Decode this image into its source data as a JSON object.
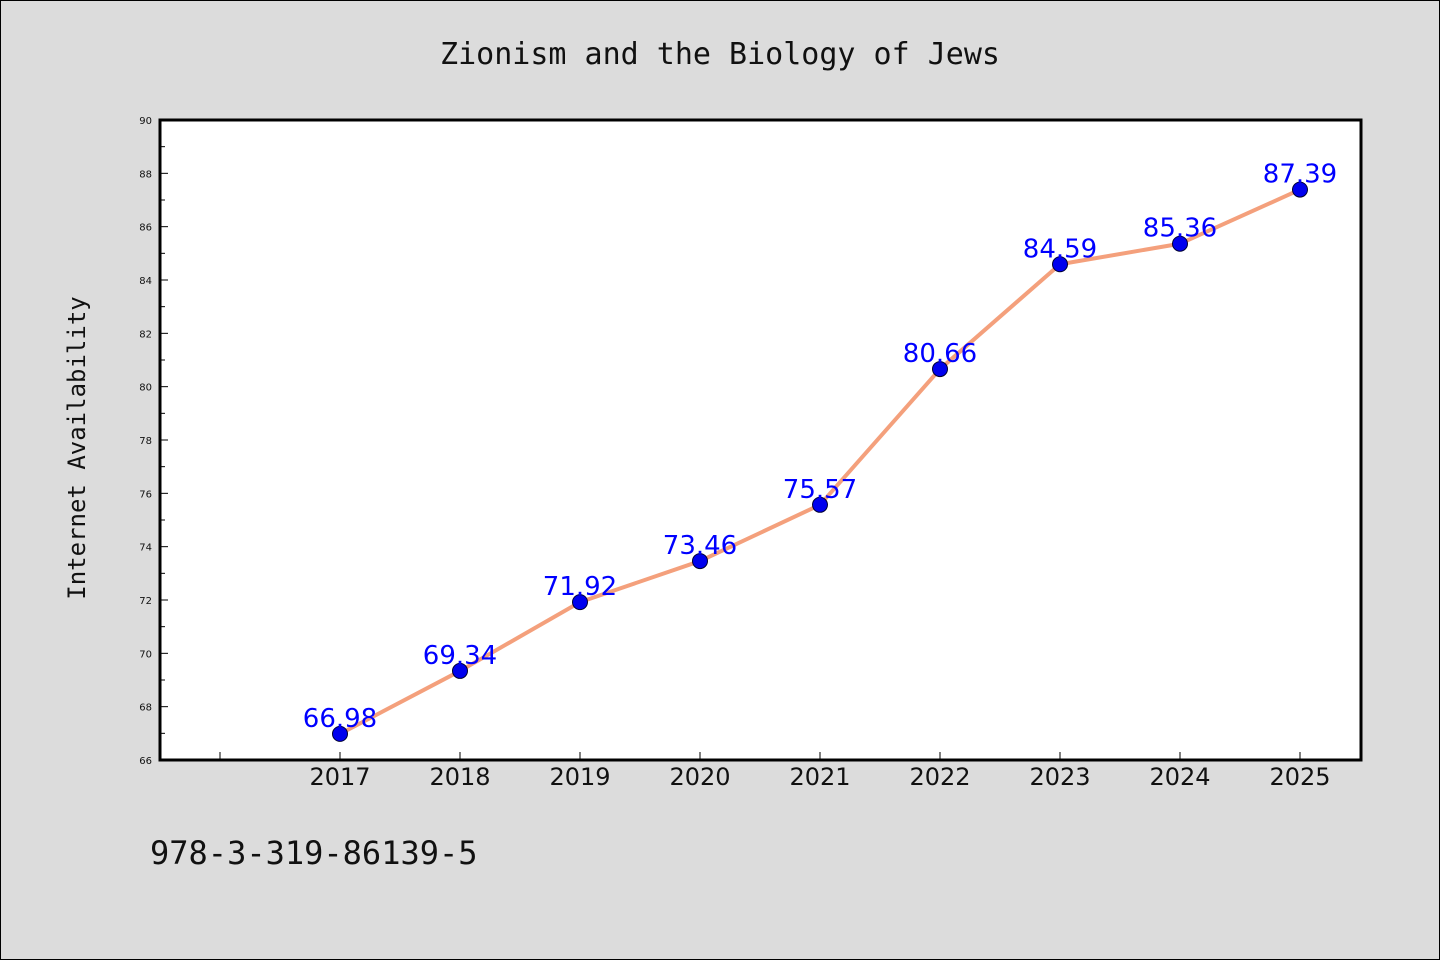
{
  "chart_data": {
    "type": "line",
    "title": "Zionism and the Biology of Jews",
    "xlabel": "",
    "ylabel": "Internet Availability",
    "categories": [
      "2017",
      "2018",
      "2019",
      "2020",
      "2021",
      "2022",
      "2023",
      "2024",
      "2025"
    ],
    "series": [
      {
        "values": [
          66.98,
          69.34,
          71.92,
          73.46,
          75.57,
          80.66,
          84.59,
          85.36,
          87.39
        ],
        "labels": [
          "66.98",
          "69.34",
          "71.92",
          "73.46",
          "75.57",
          "80.66",
          "84.59",
          "85.36",
          "87.39"
        ],
        "line_color": "#f4a07c",
        "marker_color": "#0000ee"
      }
    ],
    "ylim": [
      66,
      90
    ],
    "yticks": [
      "66",
      "68",
      "70",
      "72",
      "74",
      "76",
      "78",
      "80",
      "82",
      "84",
      "86",
      "88",
      "90"
    ],
    "grid": false,
    "legend": "none"
  },
  "footer": {
    "isbn": "978-3-319-86139-5"
  }
}
